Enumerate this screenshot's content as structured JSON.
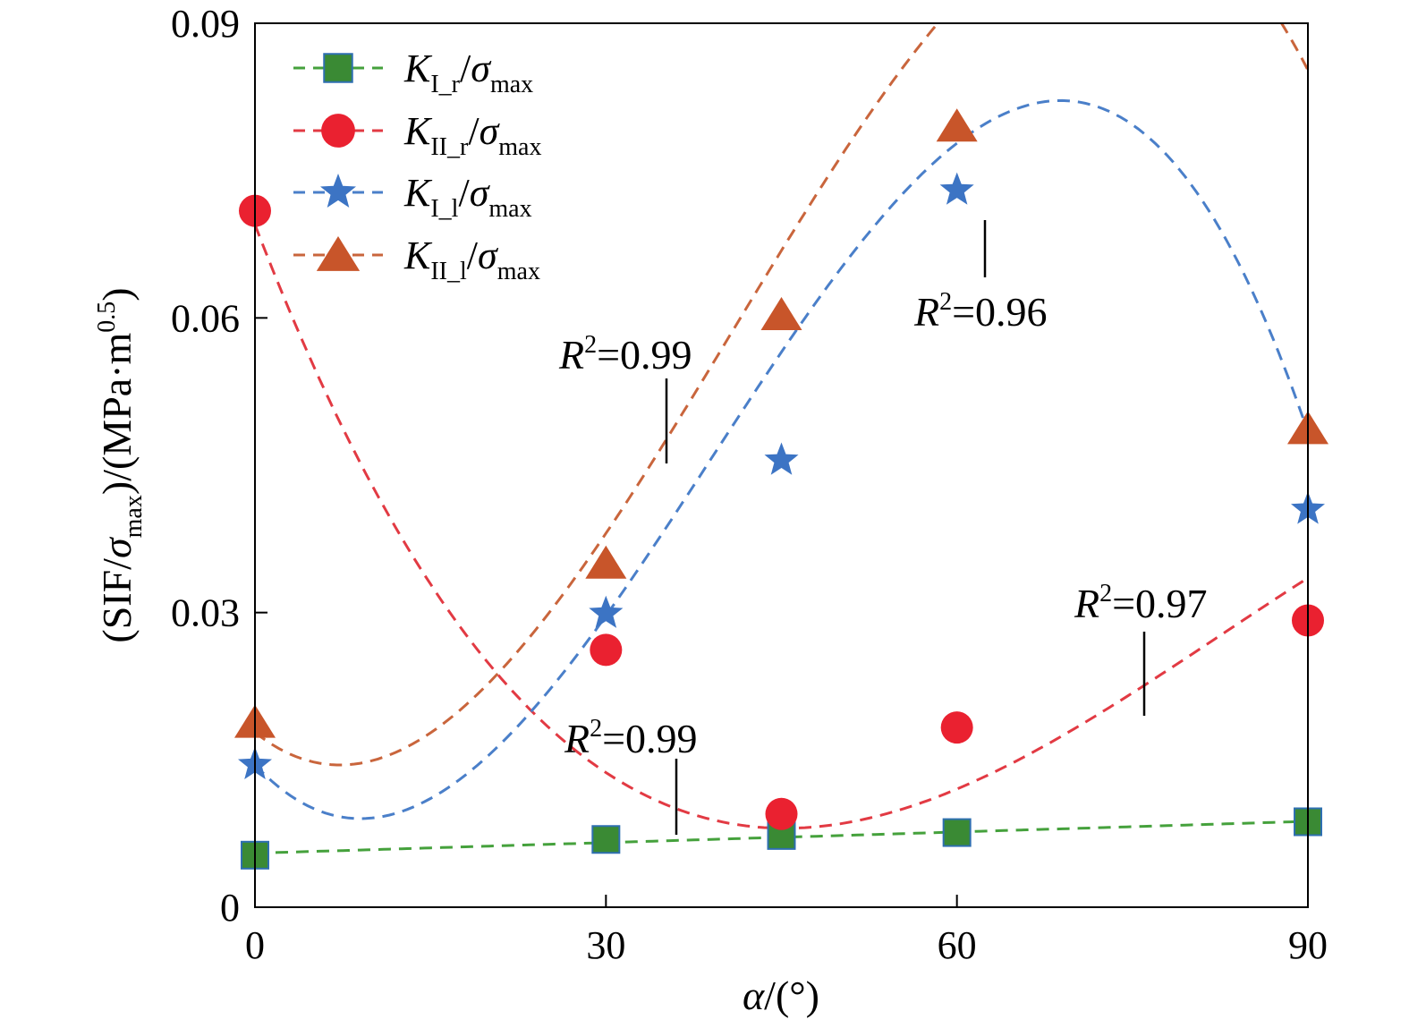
{
  "chart_data": {
    "type": "scatter",
    "xlabel": {
      "italic": "α",
      "rest": "/(°)"
    },
    "ylabel": {
      "pre": "(SIF/",
      "sym": "σ",
      "sub": "max",
      "mid": ")/(MPa·m",
      "sup": "0.5",
      "post": ")"
    },
    "xlim": [
      0,
      90
    ],
    "ylim": [
      0,
      0.09
    ],
    "x_ticks": [
      0,
      30,
      60,
      90
    ],
    "x_tick_labels": [
      "0",
      "30",
      "60",
      "90"
    ],
    "y_ticks": [
      0,
      0.03,
      0.06,
      0.09
    ],
    "y_tick_labels": [
      "0",
      "0.03",
      "0.06",
      "0.09"
    ],
    "grid": false,
    "legend_position": "top-left",
    "series": [
      {
        "key": "KI_r",
        "name": {
          "K": "K",
          "sub": "I_r",
          "slash": "/",
          "sym": "σ",
          "sub2": "max"
        },
        "marker": "square",
        "color": "#3a8a34",
        "edge": "#2e6fb0",
        "line_color": "#45a13c",
        "x": [
          0,
          30,
          45,
          60,
          90
        ],
        "y": [
          0.0053,
          0.0069,
          0.0073,
          0.0076,
          0.0087
        ],
        "fit": {
          "a": 0.0055,
          "b": 3.6e-05,
          "c": 0,
          "d": 0
        },
        "r2_label": {
          "R": "R",
          "sup": "2",
          "rest": "=0.99"
        }
      },
      {
        "key": "KII_r",
        "name": {
          "K": "K",
          "sub": "II_r",
          "slash": "/",
          "sym": "σ",
          "sub2": "max"
        },
        "marker": "circle",
        "color": "#ea2130",
        "edge": "#ea2130",
        "line_color": "#e23a43",
        "x": [
          0,
          30,
          45,
          60,
          90
        ],
        "y": [
          0.0709,
          0.0262,
          0.0095,
          0.0183,
          0.0292
        ],
        "fit": {
          "a": 0.0695,
          "b": -0.0031052,
          "c": 4.725e-05,
          "d": -1.91e-07
        },
        "r2_label": {
          "R": "R",
          "sup": "2",
          "rest": "=0.97"
        }
      },
      {
        "key": "KI_l",
        "name": {
          "K": "K",
          "sub": "I_l",
          "slash": "/",
          "sym": "σ",
          "sub2": "max"
        },
        "marker": "star",
        "color": "#3c74c4",
        "edge": "#3c74c4",
        "line_color": "#4a7fc9",
        "x": [
          0,
          30,
          45,
          60,
          90
        ],
        "y": [
          0.0145,
          0.0299,
          0.0455,
          0.073,
          0.0405
        ],
        "fit": {
          "a": 0.0145,
          "b": -0.0012708,
          "c": 7.968e-05,
          "d": -6.82e-07
        },
        "r2_label": {
          "R": "R",
          "sup": "2",
          "rest": "=0.96"
        }
      },
      {
        "key": "KII_l",
        "name": {
          "K": "K",
          "sub": "II_l",
          "slash": "/",
          "sym": "σ",
          "sub2": "max"
        },
        "marker": "triangle",
        "color": "#c8552a",
        "edge": "#c8552a",
        "line_color": "#c9653c",
        "x": [
          0,
          30,
          45,
          60,
          90
        ],
        "y": [
          0.0188,
          0.035,
          0.0603,
          0.0795,
          0.0487
        ],
        "fit": {
          "a": 0.0178,
          "b": -0.0009463,
          "c": 7.167e-05,
          "d": -5.87e-07
        },
        "r2_label": {
          "R": "R",
          "sup": "2",
          "rest": "=0.99"
        }
      }
    ]
  }
}
